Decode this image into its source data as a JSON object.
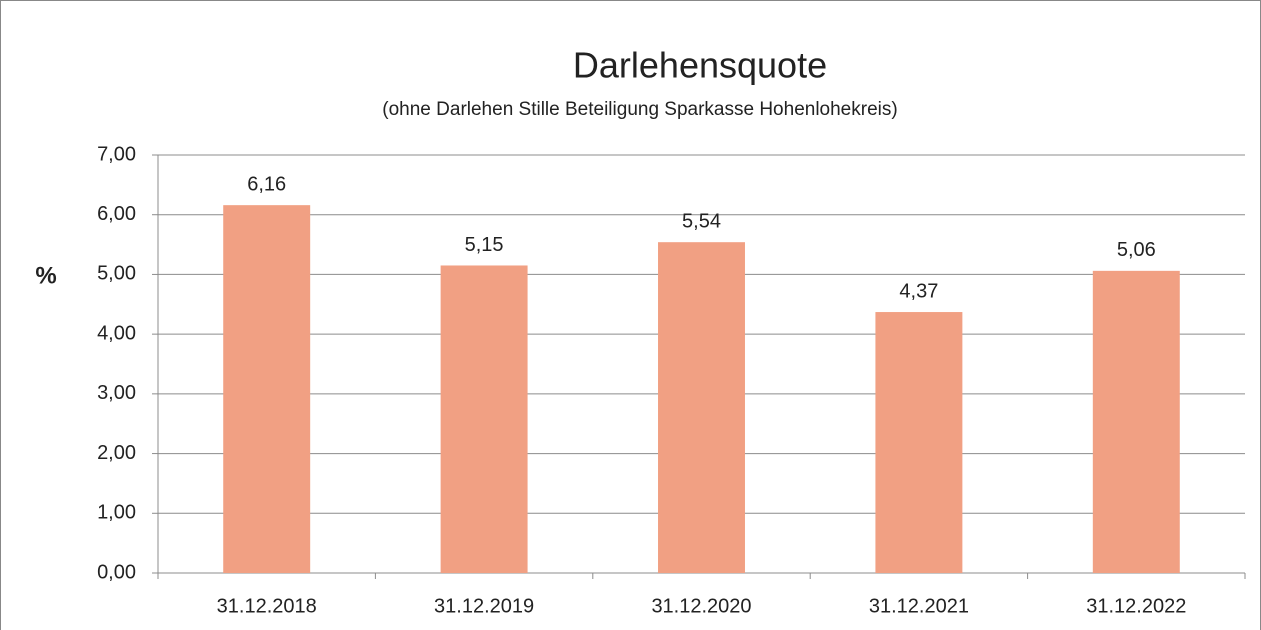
{
  "chart_data": {
    "type": "bar",
    "title": "Darlehensquote",
    "subtitle": "(ohne Darlehen Stille Beteiligung Sparkasse Hohenlohekreis)",
    "y_label": "%",
    "categories": [
      "31.12.2018",
      "31.12.2019",
      "31.12.2020",
      "31.12.2021",
      "31.12.2022"
    ],
    "values": [
      6.16,
      5.15,
      5.54,
      4.37,
      5.06
    ],
    "value_labels": [
      "6,16",
      "5,15",
      "5,54",
      "4,37",
      "5,06"
    ],
    "color": "#f1a083",
    "ylim": [
      0,
      7
    ],
    "yticks": [
      {
        "value": 0,
        "label": "0,00"
      },
      {
        "value": 1,
        "label": "1,00"
      },
      {
        "value": 2,
        "label": "2,00"
      },
      {
        "value": 3,
        "label": "3,00"
      },
      {
        "value": 4,
        "label": "4,00"
      },
      {
        "value": 5,
        "label": "5,00"
      },
      {
        "value": 6,
        "label": "6,00"
      },
      {
        "value": 7,
        "label": "7,00"
      }
    ],
    "grid": true
  }
}
